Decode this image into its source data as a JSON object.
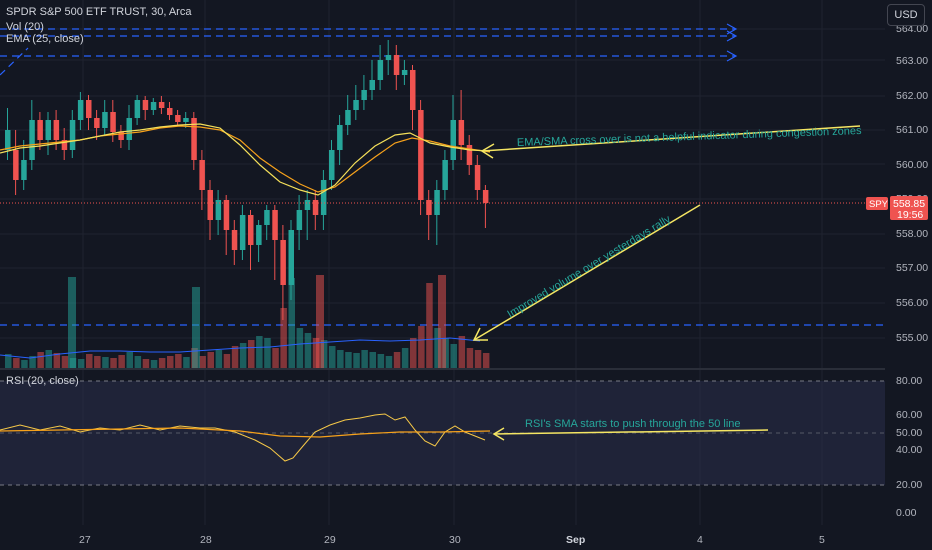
{
  "header": {
    "title": "SPDR S&P 500 ETF TRUST, 30, Arca",
    "volume_label": "Vol (20)",
    "ema_label": "EMA (25, close)",
    "currency_button": "USD"
  },
  "price_axis": {
    "ticks": [
      "564.00",
      "563.00",
      "562.00",
      "561.00",
      "560.00",
      "559.00",
      "558.00",
      "557.00",
      "556.00",
      "555.00"
    ]
  },
  "rsi_panel": {
    "label": "RSI (20, close)",
    "ticks": [
      "80.00",
      "60.00",
      "50.00",
      "40.00",
      "20.00",
      "0.00"
    ]
  },
  "time_axis": {
    "labels": [
      "27",
      "28",
      "29",
      "30",
      "Sep",
      "4",
      "5"
    ]
  },
  "price_badge": {
    "symbol": "SPY",
    "price": "558.85",
    "countdown": "19:56"
  },
  "annotations": {
    "ema_sma_note": "EMA/SMA cross over is not a helpful indicator during congestion zones",
    "volume_note": "Improved volume over yesterdays rally",
    "rsi_note": "RSI's SMA starts to push through the 50 line"
  },
  "colors": {
    "background": "#131722",
    "up_candle": "#26a69a",
    "down_candle": "#ef5350",
    "ema_line": "#f7a21b",
    "sma_line": "#f5e05a",
    "level_line": "#2962ff",
    "annotation_text": "#26a69a",
    "annotation_arrow": "#f5e663",
    "rsi_line": "#f7c948",
    "rsi_band": "#2a2e4a"
  }
}
